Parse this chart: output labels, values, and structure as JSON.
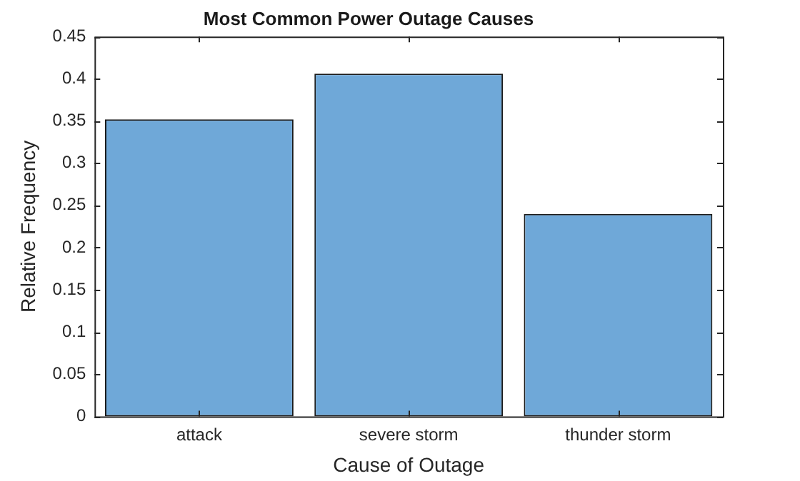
{
  "chart_data": {
    "type": "bar",
    "title": "Most Common Power Outage Causes",
    "xlabel": "Cause of Outage",
    "ylabel": "Relative Frequency",
    "categories": [
      "attack",
      "severe storm",
      "thunder storm"
    ],
    "values": [
      0.352,
      0.406,
      0.24
    ],
    "color": "#6fa8d8",
    "ylim": [
      0,
      0.45
    ],
    "yticks": [
      0,
      0.05,
      0.1,
      0.15,
      0.2,
      0.25,
      0.3,
      0.35,
      0.4,
      0.45
    ],
    "grid": false,
    "legend": false
  }
}
